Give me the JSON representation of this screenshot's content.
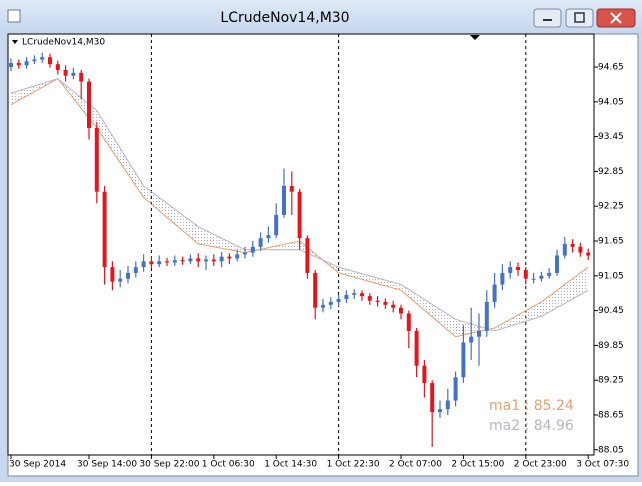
{
  "window_title": "LCrudeNov14,M30",
  "chart_data": {
    "type": "candlestick",
    "title": "LCrudeNov14,M30",
    "categories": [
      "30 Sep 2014",
      null,
      null,
      null,
      null,
      null,
      null,
      null,
      null,
      null,
      "30 Sep 14:00",
      null,
      null,
      null,
      null,
      null,
      null,
      null,
      "30 Sep 22:00",
      null,
      null,
      null,
      null,
      null,
      null,
      null,
      "1 Oct 06:30",
      null,
      null,
      null,
      null,
      null,
      null,
      null,
      "1 Oct 14:30",
      null,
      null,
      null,
      null,
      null,
      null,
      null,
      "1 Oct 22:30",
      null,
      null,
      null,
      null,
      null,
      null,
      null,
      "2 Oct 07:00",
      null,
      null,
      null,
      null,
      null,
      null,
      null,
      "2 Oct 15:00",
      null,
      null,
      null,
      null,
      null,
      null,
      null,
      "2 Oct 23:00",
      null,
      null,
      null,
      null,
      null,
      null,
      null,
      "3 Oct 07:30"
    ],
    "open": [
      94.65,
      94.72,
      94.68,
      94.75,
      94.78,
      94.82,
      94.7,
      94.6,
      94.5,
      94.55,
      94.4,
      93.6,
      92.5,
      91.2,
      90.95,
      91.0,
      91.1,
      91.2,
      91.3,
      91.25,
      91.3,
      91.28,
      91.32,
      91.3,
      91.35,
      91.3,
      91.33,
      91.3,
      91.38,
      91.35,
      91.42,
      91.45,
      91.55,
      91.7,
      91.75,
      92.1,
      92.6,
      92.5,
      91.7,
      91.1,
      90.5,
      90.55,
      90.6,
      90.65,
      90.72,
      90.75,
      90.7,
      90.62,
      90.6,
      90.55,
      90.5,
      90.4,
      90.1,
      89.5,
      89.2,
      88.7,
      88.75,
      88.9,
      89.3,
      89.9,
      90.0,
      90.1,
      90.6,
      90.9,
      91.1,
      91.2,
      91.15,
      91.0,
      91.0,
      91.05,
      91.1,
      91.4,
      91.6,
      91.55,
      91.45
    ],
    "high": [
      94.8,
      94.78,
      94.82,
      94.85,
      94.9,
      94.88,
      94.76,
      94.68,
      94.64,
      94.6,
      94.45,
      93.7,
      92.6,
      91.3,
      91.15,
      91.22,
      91.3,
      91.42,
      91.38,
      91.4,
      91.36,
      91.4,
      91.38,
      91.42,
      91.44,
      91.4,
      91.42,
      91.46,
      91.44,
      91.5,
      91.55,
      91.65,
      91.8,
      91.9,
      92.3,
      92.9,
      92.85,
      92.55,
      91.75,
      91.15,
      90.65,
      90.68,
      90.72,
      90.8,
      90.82,
      90.8,
      90.75,
      90.7,
      90.66,
      90.62,
      90.55,
      90.45,
      90.15,
      89.6,
      89.25,
      88.9,
      89.1,
      89.4,
      90.2,
      90.5,
      90.4,
      90.8,
      91.1,
      91.25,
      91.3,
      91.28,
      91.2,
      91.1,
      91.12,
      91.18,
      91.5,
      91.72,
      91.68,
      91.62,
      91.52
    ],
    "low": [
      94.58,
      94.62,
      94.62,
      94.7,
      94.72,
      94.64,
      94.52,
      94.4,
      94.44,
      94.1,
      93.4,
      92.3,
      90.9,
      90.8,
      90.85,
      90.92,
      91.02,
      91.12,
      91.18,
      91.2,
      91.22,
      91.22,
      91.24,
      91.25,
      91.2,
      91.15,
      91.22,
      91.2,
      91.25,
      91.3,
      91.35,
      91.38,
      91.48,
      91.62,
      91.7,
      92.05,
      92.1,
      91.5,
      91.0,
      90.3,
      90.42,
      90.48,
      90.52,
      90.58,
      90.65,
      90.62,
      90.55,
      90.52,
      90.48,
      90.42,
      90.3,
      89.8,
      89.3,
      88.95,
      88.1,
      88.6,
      88.65,
      88.8,
      89.2,
      89.6,
      89.5,
      90.0,
      90.5,
      90.8,
      91.0,
      91.05,
      90.9,
      90.92,
      90.95,
      91.0,
      91.05,
      91.35,
      91.45,
      91.38,
      91.32
    ],
    "close": [
      94.72,
      94.68,
      94.75,
      94.78,
      94.82,
      94.7,
      94.6,
      94.5,
      94.55,
      94.4,
      93.6,
      92.5,
      91.2,
      90.95,
      91.0,
      91.1,
      91.2,
      91.3,
      91.25,
      91.3,
      91.28,
      91.32,
      91.3,
      91.35,
      91.3,
      91.33,
      91.3,
      91.38,
      91.35,
      91.42,
      91.45,
      91.55,
      91.7,
      91.75,
      92.1,
      92.6,
      92.5,
      91.7,
      91.1,
      90.5,
      90.55,
      90.6,
      90.65,
      90.72,
      90.75,
      90.7,
      90.62,
      90.6,
      90.55,
      90.5,
      90.4,
      90.1,
      89.5,
      89.2,
      88.7,
      88.75,
      88.9,
      89.3,
      89.9,
      90.0,
      90.1,
      90.6,
      90.9,
      91.1,
      91.2,
      91.15,
      91.0,
      91.0,
      91.05,
      91.1,
      91.4,
      91.6,
      91.55,
      91.45,
      91.4
    ],
    "up_color": "#4472c4",
    "down_color": "#e8141c",
    "overlays": [
      {
        "name": "ma1 : 85.24",
        "color": "#e8a070",
        "x": [
          0,
          6,
          11,
          17,
          24,
          30,
          37,
          42,
          50,
          57,
          62,
          68,
          74
        ],
        "values": [
          94.0,
          94.45,
          93.6,
          92.4,
          91.6,
          91.45,
          91.65,
          91.1,
          90.8,
          90.0,
          90.15,
          90.6,
          91.2
        ]
      },
      {
        "name": "ma2 : 84.96",
        "color": "#b8b4c8",
        "x": [
          0,
          6,
          11,
          17,
          24,
          30,
          37,
          42,
          50,
          57,
          62,
          68,
          74
        ],
        "values": [
          94.2,
          94.45,
          93.9,
          92.6,
          91.9,
          91.5,
          91.5,
          91.2,
          90.9,
          90.3,
          90.1,
          90.35,
          90.8
        ]
      }
    ],
    "ylim": [
      87.96,
      95.22
    ],
    "yticks": [
      94.65,
      94.05,
      93.45,
      92.85,
      92.25,
      91.65,
      91.05,
      90.45,
      89.85,
      89.25,
      88.65,
      88.05
    ]
  }
}
